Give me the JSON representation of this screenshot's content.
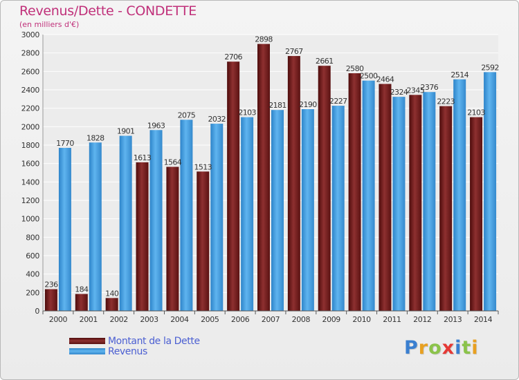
{
  "title": "Revenus/Dette - CONDETTE",
  "subtitle": "(en milliers d'€)",
  "logo": {
    "text": "Proxiti",
    "letter_colors": [
      "#3a7fd0",
      "#e8a020",
      "#8bc34a",
      "#e53935",
      "#3a7fd0",
      "#8bc34a",
      "#e8a020"
    ]
  },
  "colors": {
    "debt": "#7a2020",
    "revenue": "#4aa3e3"
  },
  "legend": [
    {
      "label": "Montant de la Dette",
      "color": "#7a2020"
    },
    {
      "label": "Revenus",
      "color": "#4aa3e3"
    }
  ],
  "chart_data": {
    "type": "bar",
    "title": "Revenus/Dette - CONDETTE",
    "subtitle": "(en milliers d'€)",
    "categories": [
      "2000",
      "2001",
      "2002",
      "2003",
      "2004",
      "2005",
      "2006",
      "2007",
      "2008",
      "2009",
      "2010",
      "2011",
      "2012",
      "2013",
      "2014"
    ],
    "series": [
      {
        "name": "Montant de la Dette",
        "color": "#7a2020",
        "values": [
          236,
          184,
          140,
          1613,
          1564,
          1513,
          2706,
          2898,
          2767,
          2661,
          2580,
          2464,
          2345,
          2223,
          2103
        ],
        "labels": [
          "236",
          "184",
          "140",
          "1613",
          "1564",
          "1513",
          "2706",
          "2898",
          "2767",
          "2661",
          "2580",
          "2464",
          "2345",
          "2223",
          "2103"
        ]
      },
      {
        "name": "Revenus",
        "color": "#4aa3e3",
        "values": [
          1770,
          1828,
          1901,
          1963,
          2075,
          2032,
          2103,
          2181,
          2190,
          2227,
          2500,
          2324,
          2376,
          2514,
          2592
        ],
        "labels": [
          "1770",
          "1828",
          "1901",
          "1963",
          "2075",
          "2032",
          "2103",
          "2181",
          "2190",
          "2227",
          "2500",
          "2324",
          "2376",
          "2514",
          "2592"
        ]
      }
    ],
    "ylim": [
      0,
      3000
    ],
    "yticks": [
      "0",
      "200",
      "400",
      "600",
      "800",
      "1000",
      "1200",
      "1400",
      "1600",
      "1800",
      "2000",
      "2200",
      "2400",
      "2600",
      "2800",
      "3000"
    ],
    "grid": true,
    "legend_position": "bottom-left"
  }
}
